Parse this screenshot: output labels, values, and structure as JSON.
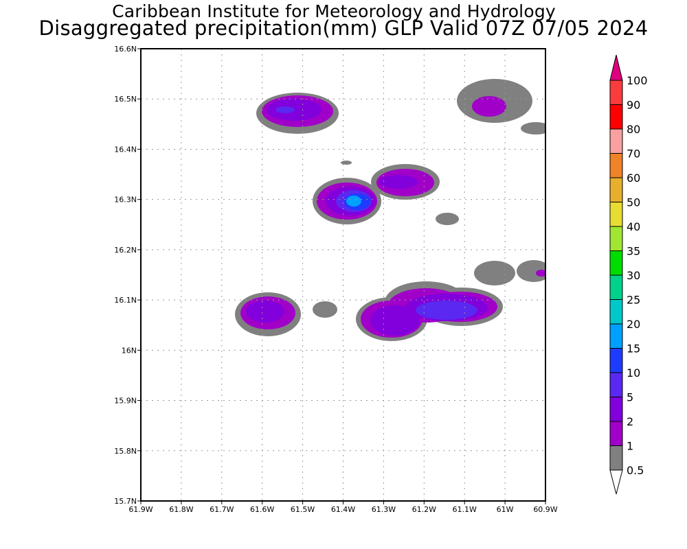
{
  "title": {
    "line1": "Caribbean Institute for Meteorology and Hydrology",
    "line2": "Disaggregated precipitation(mm) GLP Valid 07Z 07/05 2024"
  },
  "map": {
    "lon_range": [
      -61.9,
      -60.9
    ],
    "lat_range": [
      15.7,
      16.6
    ],
    "x_ticks": [
      "61.9W",
      "61.8W",
      "61.7W",
      "61.6W",
      "61.5W",
      "61.4W",
      "61.3W",
      "61.2W",
      "61.1W",
      "61W",
      "60.9W"
    ],
    "y_ticks": [
      "15.7N",
      "15.8N",
      "15.9N",
      "16N",
      "16.1N",
      "16.2N",
      "16.3N",
      "16.4N",
      "16.5N",
      "16.6N"
    ],
    "grid": true
  },
  "colorbar": {
    "levels": [
      "0.5",
      "1",
      "2",
      "5",
      "10",
      "15",
      "20",
      "25",
      "30",
      "35",
      "40",
      "50",
      "60",
      "70",
      "80",
      "90",
      "100"
    ],
    "colors": [
      "#808080",
      "#a000c8",
      "#8200dc",
      "#5a28f0",
      "#1e3cff",
      "#00a0ff",
      "#00c8c8",
      "#00d28c",
      "#00dc00",
      "#a0e632",
      "#e6dc32",
      "#e6af2d",
      "#f08228",
      "#faa0a0",
      "#ff0000",
      "#fa3c3c"
    ],
    "over_color": "#e0007f",
    "under_color": "#ffffff"
  }
}
